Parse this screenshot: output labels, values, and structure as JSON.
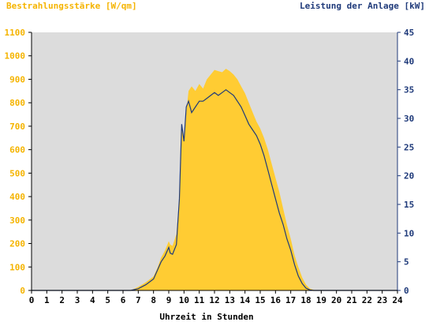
{
  "chart_data": {
    "type": "area",
    "left_title": "Bestrahlungsstärke [W/qm]",
    "right_title": "Leistung der Anlage [kW]",
    "xlabel": "Uhrzeit in Stunden",
    "xlim": [
      0,
      24
    ],
    "ylim_left": [
      0,
      1100
    ],
    "ylim_right": [
      0,
      45
    ],
    "x_ticks": [
      "0",
      "1",
      "2",
      "3",
      "4",
      "5",
      "6",
      "7",
      "8",
      "9",
      "10",
      "11",
      "12",
      "13",
      "14",
      "15",
      "16",
      "17",
      "18",
      "19",
      "20",
      "21",
      "22",
      "23",
      "24"
    ],
    "y_left_ticks": [
      "0",
      "100",
      "200",
      "300",
      "400",
      "500",
      "600",
      "700",
      "800",
      "900",
      "1000",
      "1100"
    ],
    "y_right_ticks": [
      "0",
      "5",
      "10",
      "15",
      "20",
      "25",
      "30",
      "35",
      "40",
      "45"
    ],
    "grid": false,
    "colors": {
      "plot_bg": "#dcdcdc",
      "irradiance": "#ffcc33",
      "power": "#1f3a7a",
      "left_axis_text": "#f5b400",
      "right_axis_text": "#1f3a7a"
    },
    "series": [
      {
        "name": "Bestrahlungsstärke [W/qm]",
        "axis": "left",
        "style": "area",
        "x": [
          0,
          6.5,
          7.0,
          7.5,
          8.0,
          8.25,
          8.5,
          8.75,
          9.0,
          9.1,
          9.25,
          9.5,
          9.7,
          9.85,
          10.0,
          10.15,
          10.3,
          10.5,
          10.75,
          11.0,
          11.25,
          11.5,
          11.75,
          12.0,
          12.25,
          12.5,
          12.75,
          13.0,
          13.25,
          13.5,
          13.75,
          14.0,
          14.25,
          14.5,
          14.75,
          15.0,
          15.25,
          15.5,
          15.75,
          16.0,
          16.25,
          16.5,
          16.75,
          17.0,
          17.25,
          17.5,
          17.75,
          18.0,
          18.25,
          18.5,
          18.75,
          19.0,
          19.2,
          24
        ],
        "y": [
          0,
          0,
          15,
          35,
          60,
          95,
          140,
          170,
          210,
          195,
          190,
          240,
          400,
          700,
          640,
          760,
          850,
          870,
          850,
          880,
          860,
          900,
          920,
          940,
          935,
          930,
          945,
          935,
          920,
          900,
          870,
          840,
          800,
          760,
          720,
          690,
          650,
          600,
          540,
          480,
          420,
          350,
          280,
          220,
          150,
          100,
          55,
          25,
          8,
          2,
          0,
          0,
          0,
          0
        ]
      },
      {
        "name": "Leistung der Anlage [kW]",
        "axis": "right",
        "style": "line",
        "x": [
          0,
          6.5,
          7.0,
          7.5,
          8.0,
          8.25,
          8.5,
          8.75,
          9.0,
          9.1,
          9.25,
          9.5,
          9.7,
          9.85,
          10.0,
          10.15,
          10.3,
          10.5,
          10.75,
          11.0,
          11.25,
          11.5,
          11.75,
          12.0,
          12.25,
          12.5,
          12.75,
          13.0,
          13.25,
          13.5,
          13.75,
          14.0,
          14.25,
          14.5,
          14.75,
          15.0,
          15.25,
          15.5,
          15.75,
          16.0,
          16.25,
          16.5,
          16.75,
          17.0,
          17.25,
          17.5,
          17.75,
          18.0,
          18.25,
          18.5,
          18.75,
          19.0,
          19.2,
          24
        ],
        "y": [
          0,
          0,
          0.3,
          1.0,
          2.0,
          3.5,
          5.0,
          6.0,
          7.5,
          6.5,
          6.3,
          8.0,
          16,
          29,
          26,
          32,
          33,
          31,
          32,
          33,
          33,
          33.5,
          34,
          34.5,
          34,
          34.5,
          35,
          34.5,
          34,
          33,
          32,
          30.5,
          29,
          28,
          27,
          25.5,
          23.5,
          21,
          18.5,
          16,
          13.5,
          11.5,
          9,
          7,
          4.5,
          2.5,
          1.2,
          0.4,
          0.1,
          0,
          0,
          0,
          0,
          0
        ]
      }
    ]
  }
}
